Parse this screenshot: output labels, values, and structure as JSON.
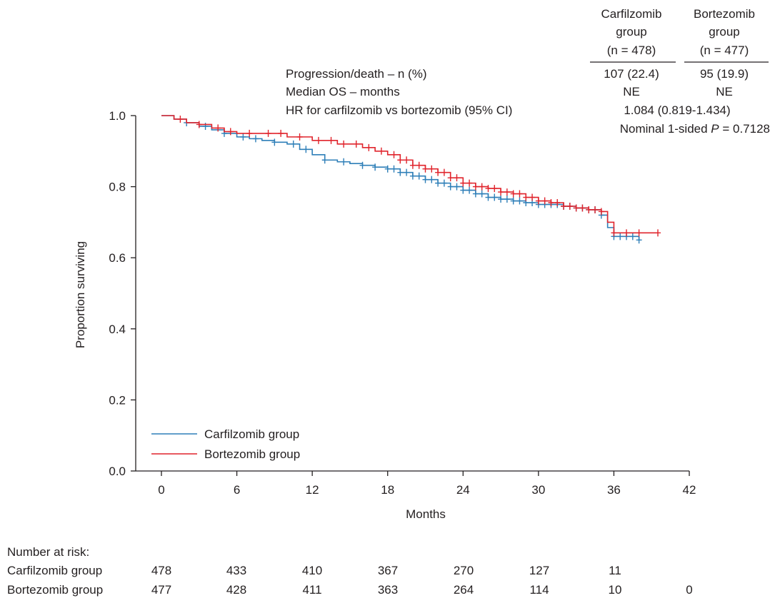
{
  "stats_table": {
    "headers": [
      [
        "Carfilzomib",
        "group",
        "(n = 478)"
      ],
      [
        "Bortezomib",
        "group",
        "(n = 477)"
      ]
    ],
    "rows": [
      {
        "label": "Progression/death – n (%)",
        "carfilzomib": "107 (22.4)",
        "bortezomib": "95 (19.9)"
      },
      {
        "label": "Median OS – months",
        "carfilzomib": "NE",
        "bortezomib": "NE"
      },
      {
        "label": "HR for carfilzomib vs bortezomib (95% CI)",
        "combined": "1.084 (0.819-1.434)"
      }
    ],
    "pvalue_prefix": "Nominal 1-sided ",
    "pvalue_symbol": "P",
    "pvalue_suffix": " = 0.7128"
  },
  "colors": {
    "carfilzomib": "#2e7fb8",
    "bortezomib": "#e0242c",
    "axis": "#231f20"
  },
  "chart_data": {
    "type": "line",
    "xlabel": "Months",
    "ylabel": "Proportion surviving",
    "xlim": [
      0,
      42
    ],
    "ylim": [
      0,
      1.0
    ],
    "x_ticks": [
      0,
      6,
      12,
      18,
      24,
      30,
      36,
      42
    ],
    "y_ticks": [
      "0.0",
      "0.2",
      "0.4",
      "0.6",
      "0.8",
      "1.0"
    ],
    "grid": false,
    "legend_position": "bottom-left",
    "series": [
      {
        "name": "Carfilzomib group",
        "step": true,
        "points": [
          [
            0,
            1.0
          ],
          [
            1,
            0.99
          ],
          [
            2,
            0.98
          ],
          [
            3,
            0.97
          ],
          [
            4,
            0.96
          ],
          [
            5,
            0.95
          ],
          [
            6,
            0.94
          ],
          [
            7,
            0.935
          ],
          [
            8,
            0.93
          ],
          [
            9,
            0.925
          ],
          [
            10,
            0.92
          ],
          [
            11,
            0.905
          ],
          [
            12,
            0.89
          ],
          [
            13,
            0.875
          ],
          [
            14,
            0.87
          ],
          [
            15,
            0.865
          ],
          [
            16,
            0.86
          ],
          [
            17,
            0.855
          ],
          [
            18,
            0.85
          ],
          [
            19,
            0.84
          ],
          [
            20,
            0.83
          ],
          [
            21,
            0.82
          ],
          [
            22,
            0.81
          ],
          [
            23,
            0.8
          ],
          [
            24,
            0.79
          ],
          [
            25,
            0.78
          ],
          [
            26,
            0.77
          ],
          [
            27,
            0.765
          ],
          [
            28,
            0.76
          ],
          [
            29,
            0.755
          ],
          [
            30,
            0.75
          ],
          [
            31,
            0.75
          ],
          [
            32,
            0.745
          ],
          [
            33,
            0.74
          ],
          [
            34,
            0.735
          ],
          [
            35,
            0.72
          ],
          [
            35.5,
            0.685
          ],
          [
            36,
            0.66
          ],
          [
            38,
            0.65
          ]
        ],
        "censor_marks": [
          2,
          3.5,
          5,
          6.5,
          7.5,
          9,
          10.5,
          11.5,
          13,
          14.5,
          16,
          17,
          18,
          18.5,
          19,
          19.5,
          20,
          20.5,
          21,
          21.5,
          22,
          22.5,
          23,
          23.5,
          24,
          24.5,
          25,
          25.5,
          26,
          26.5,
          27,
          27.5,
          28,
          28.5,
          29,
          29.5,
          30,
          30.5,
          31,
          31.5,
          32,
          32.5,
          33,
          33.5,
          34,
          34.5,
          35,
          36,
          36.5,
          37,
          37.5,
          38
        ]
      },
      {
        "name": "Bortezomib group",
        "step": true,
        "points": [
          [
            0,
            1.0
          ],
          [
            1,
            0.99
          ],
          [
            2,
            0.98
          ],
          [
            3,
            0.975
          ],
          [
            4,
            0.965
          ],
          [
            5,
            0.955
          ],
          [
            6,
            0.95
          ],
          [
            8,
            0.95
          ],
          [
            10,
            0.94
          ],
          [
            12,
            0.93
          ],
          [
            14,
            0.92
          ],
          [
            16,
            0.91
          ],
          [
            17,
            0.9
          ],
          [
            18,
            0.89
          ],
          [
            19,
            0.875
          ],
          [
            20,
            0.86
          ],
          [
            21,
            0.85
          ],
          [
            22,
            0.84
          ],
          [
            23,
            0.825
          ],
          [
            24,
            0.81
          ],
          [
            25,
            0.8
          ],
          [
            26,
            0.795
          ],
          [
            27,
            0.785
          ],
          [
            28,
            0.78
          ],
          [
            29,
            0.77
          ],
          [
            30,
            0.76
          ],
          [
            31,
            0.755
          ],
          [
            32,
            0.745
          ],
          [
            33,
            0.74
          ],
          [
            34,
            0.735
          ],
          [
            35,
            0.73
          ],
          [
            35.5,
            0.7
          ],
          [
            36,
            0.67
          ],
          [
            39.5,
            0.67
          ]
        ],
        "censor_marks": [
          1.5,
          3,
          4.5,
          5.5,
          7,
          8.5,
          9.5,
          11,
          12.5,
          13.5,
          14.5,
          15.5,
          16.5,
          17.5,
          18.5,
          19,
          19.5,
          20,
          20.5,
          21,
          21.5,
          22,
          22.5,
          23,
          23.5,
          24,
          24.5,
          25,
          25.5,
          26,
          26.5,
          27,
          27.5,
          28,
          28.5,
          29,
          29.5,
          30,
          30.5,
          31,
          31.5,
          32,
          32.5,
          33,
          33.5,
          34,
          34.5,
          35,
          36,
          37,
          38,
          39.5
        ]
      }
    ]
  },
  "risk_table": {
    "title": "Number at risk:",
    "rows": [
      {
        "label": "Carfilzomib group",
        "values": [
          "478",
          "433",
          "410",
          "367",
          "270",
          "127",
          "11",
          ""
        ]
      },
      {
        "label": "Bortezomib group",
        "values": [
          "477",
          "428",
          "411",
          "363",
          "264",
          "114",
          "10",
          "0"
        ]
      }
    ]
  }
}
